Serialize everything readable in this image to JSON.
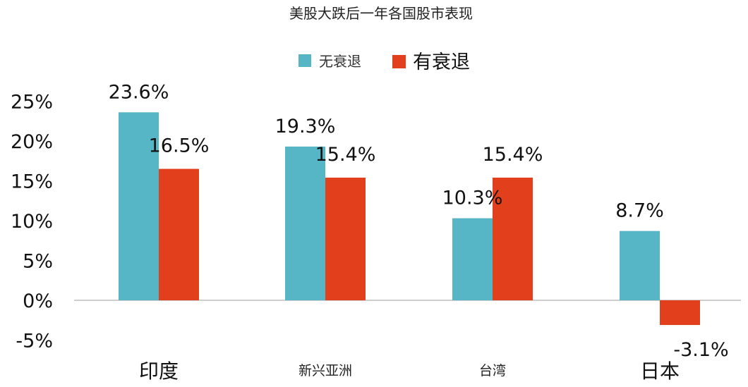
{
  "chart_data": {
    "type": "bar",
    "title": "美股大跌后一年各国股市表现",
    "categories": [
      "印度",
      "新兴亚洲",
      "台湾",
      "日本"
    ],
    "series": [
      {
        "name": "无衰退",
        "color": "#56b6c6",
        "values": [
          23.6,
          19.3,
          10.3,
          8.7
        ],
        "labels": [
          "23.6%",
          "19.3%",
          "10.3%",
          "8.7%"
        ]
      },
      {
        "name": "有衰退",
        "color": "#e2401c",
        "values": [
          16.5,
          15.4,
          15.4,
          -3.1
        ],
        "labels": [
          "16.5%",
          "15.4%",
          "15.4%",
          "-3.1%"
        ]
      }
    ],
    "ylim": [
      -5,
      25
    ],
    "yticks": [
      25,
      20,
      15,
      10,
      5,
      0,
      -5
    ],
    "ytick_labels": [
      "25%",
      "20%",
      "15%",
      "10%",
      "5%",
      "0%",
      "-5%"
    ],
    "legend_position": "top-center",
    "grid": false
  }
}
